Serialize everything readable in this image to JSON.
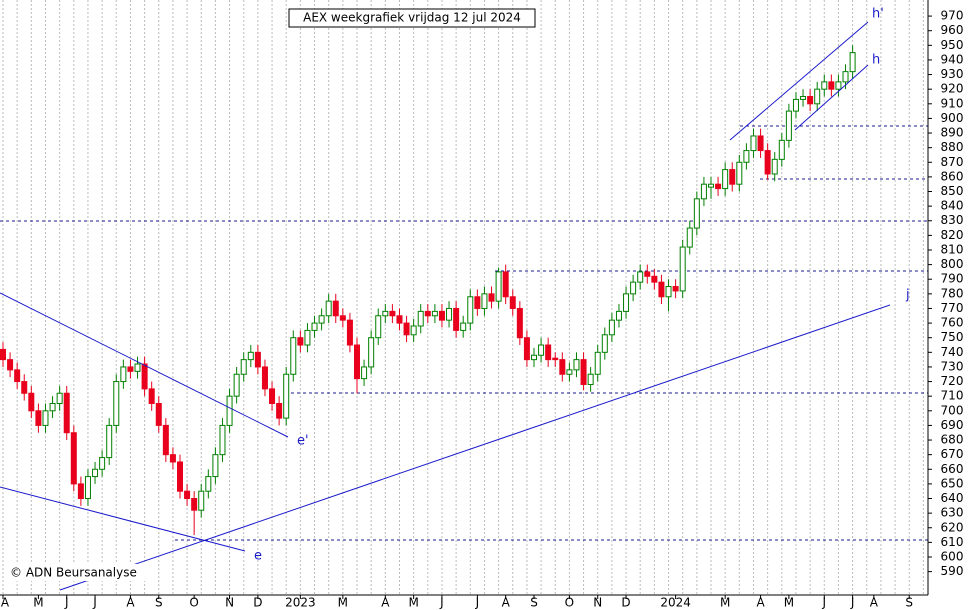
{
  "chart_data": {
    "type": "candlestick",
    "title": "AEX weekgrafiek vrijdag 12 jul 2024",
    "copyright": "© ADN Beursanalyse",
    "annotations": [
      "e'",
      "e",
      "j",
      "h'",
      "h"
    ],
    "categories": [
      "A",
      null,
      null,
      null,
      null,
      "M",
      null,
      null,
      null,
      "J",
      null,
      null,
      null,
      "J",
      null,
      null,
      null,
      null,
      "A",
      null,
      null,
      null,
      "S",
      null,
      null,
      null,
      null,
      "O",
      null,
      null,
      null,
      null,
      "N",
      null,
      null,
      null,
      "D",
      null,
      null,
      null,
      null,
      null,
      "2023",
      null,
      null,
      null,
      null,
      null,
      "M",
      null,
      null,
      null,
      null,
      null,
      "A",
      null,
      null,
      null,
      "M",
      null,
      null,
      null,
      "J",
      null,
      null,
      null,
      null,
      "J",
      null,
      null,
      null,
      "A",
      null,
      null,
      null,
      "S",
      null,
      null,
      null,
      null,
      "O",
      null,
      null,
      null,
      "N",
      null,
      null,
      null,
      "D",
      null,
      null,
      null,
      null,
      null,
      null,
      "2024",
      null,
      null,
      null,
      null,
      null,
      null,
      "M",
      null,
      null,
      null,
      null,
      "A",
      null,
      null,
      null,
      "M",
      null,
      null,
      null,
      null,
      "J",
      null,
      null,
      null,
      "J",
      null,
      null,
      "A",
      null,
      null,
      null,
      null,
      "S",
      null,
      null,
      null
    ],
    "open": [
      742,
      735,
      728,
      720,
      712,
      700,
      690,
      700,
      705,
      712,
      685,
      650,
      640,
      655,
      660,
      668,
      690,
      720,
      730,
      727,
      732,
      715,
      705,
      690,
      670,
      665,
      645,
      640,
      632,
      645,
      655,
      670,
      690,
      710,
      725,
      735,
      740,
      730,
      715,
      705,
      695,
      725,
      750,
      745,
      755,
      760,
      765,
      775,
      765,
      762,
      745,
      722,
      730,
      750,
      765,
      768,
      765,
      760,
      752,
      758,
      768,
      765,
      768,
      762,
      770,
      755,
      760,
      778,
      770,
      780,
      775,
      795,
      778,
      770,
      750,
      735,
      738,
      745,
      736,
      735,
      725,
      728,
      735,
      718,
      725,
      740,
      752,
      762,
      768,
      780,
      788,
      795,
      792,
      788,
      778,
      785,
      782,
      812,
      825,
      845,
      853,
      855,
      852,
      865,
      855,
      870,
      878,
      888,
      878,
      862,
      872,
      885,
      905,
      913,
      915,
      910,
      920,
      925,
      920,
      925,
      932,
      null,
      null,
      null,
      null,
      null,
      null,
      null,
      null,
      null,
      null,
      null
    ],
    "high": [
      747,
      740,
      733,
      725,
      717,
      705,
      705,
      710,
      717,
      717,
      690,
      655,
      660,
      665,
      673,
      695,
      725,
      735,
      735,
      737,
      737,
      720,
      710,
      695,
      675,
      670,
      650,
      645,
      650,
      660,
      675,
      695,
      715,
      730,
      740,
      745,
      745,
      735,
      720,
      710,
      730,
      755,
      755,
      760,
      765,
      770,
      780,
      780,
      770,
      767,
      750,
      735,
      755,
      770,
      773,
      773,
      770,
      765,
      763,
      773,
      773,
      773,
      773,
      775,
      775,
      765,
      783,
      783,
      785,
      785,
      798,
      800,
      783,
      775,
      755,
      743,
      750,
      750,
      740,
      740,
      733,
      740,
      740,
      730,
      745,
      757,
      767,
      773,
      785,
      793,
      800,
      800,
      797,
      793,
      790,
      790,
      817,
      830,
      850,
      860,
      860,
      860,
      870,
      870,
      875,
      883,
      893,
      893,
      883,
      877,
      890,
      910,
      918,
      920,
      920,
      925,
      930,
      930,
      930,
      937,
      950,
      null,
      null,
      null,
      null,
      null,
      null,
      null,
      null,
      null,
      null,
      null
    ],
    "low": [
      730,
      723,
      715,
      707,
      695,
      685,
      685,
      695,
      700,
      680,
      645,
      635,
      635,
      650,
      655,
      663,
      685,
      715,
      722,
      722,
      710,
      700,
      685,
      665,
      660,
      640,
      635,
      615,
      627,
      640,
      650,
      665,
      685,
      705,
      720,
      730,
      725,
      710,
      700,
      690,
      690,
      720,
      740,
      740,
      750,
      755,
      760,
      760,
      757,
      740,
      712,
      717,
      725,
      745,
      760,
      760,
      755,
      747,
      747,
      753,
      760,
      760,
      757,
      757,
      750,
      750,
      755,
      765,
      765,
      770,
      770,
      773,
      765,
      745,
      730,
      730,
      733,
      730,
      730,
      720,
      720,
      723,
      714,
      713,
      720,
      735,
      747,
      757,
      763,
      775,
      783,
      787,
      783,
      773,
      768,
      777,
      777,
      807,
      820,
      840,
      845,
      847,
      847,
      850,
      850,
      865,
      873,
      873,
      858,
      857,
      867,
      880,
      900,
      908,
      905,
      905,
      915,
      915,
      915,
      920,
      927,
      null,
      null,
      null,
      null,
      null,
      null,
      null,
      null,
      null,
      null,
      null
    ],
    "close": [
      735,
      728,
      720,
      712,
      700,
      690,
      700,
      705,
      712,
      685,
      650,
      640,
      655,
      660,
      668,
      690,
      720,
      730,
      727,
      732,
      715,
      705,
      690,
      670,
      665,
      645,
      640,
      632,
      645,
      655,
      670,
      690,
      710,
      725,
      735,
      740,
      730,
      715,
      705,
      695,
      725,
      750,
      745,
      755,
      760,
      765,
      775,
      765,
      762,
      745,
      722,
      730,
      750,
      765,
      768,
      765,
      760,
      752,
      758,
      768,
      765,
      768,
      762,
      770,
      755,
      760,
      778,
      770,
      780,
      775,
      795,
      778,
      770,
      750,
      735,
      738,
      745,
      735,
      735,
      725,
      728,
      735,
      718,
      725,
      740,
      752,
      762,
      768,
      780,
      788,
      795,
      792,
      788,
      778,
      785,
      782,
      812,
      825,
      845,
      855,
      855,
      852,
      865,
      855,
      870,
      878,
      888,
      878,
      862,
      872,
      885,
      905,
      913,
      915,
      910,
      920,
      925,
      920,
      925,
      932,
      945,
      null,
      null,
      null,
      null,
      null,
      null,
      null,
      null,
      null,
      null,
      null
    ],
    "up_color": "#008000",
    "down_color": "#e8001c",
    "ylim": [
      574,
      981
    ],
    "yticks": [
      590,
      600,
      610,
      620,
      630,
      640,
      650,
      660,
      670,
      680,
      690,
      700,
      710,
      720,
      730,
      740,
      750,
      760,
      770,
      780,
      790,
      800,
      810,
      820,
      830,
      840,
      850,
      860,
      870,
      880,
      890,
      900,
      910,
      920,
      930,
      940,
      950,
      960,
      970
    ],
    "grid": true
  }
}
